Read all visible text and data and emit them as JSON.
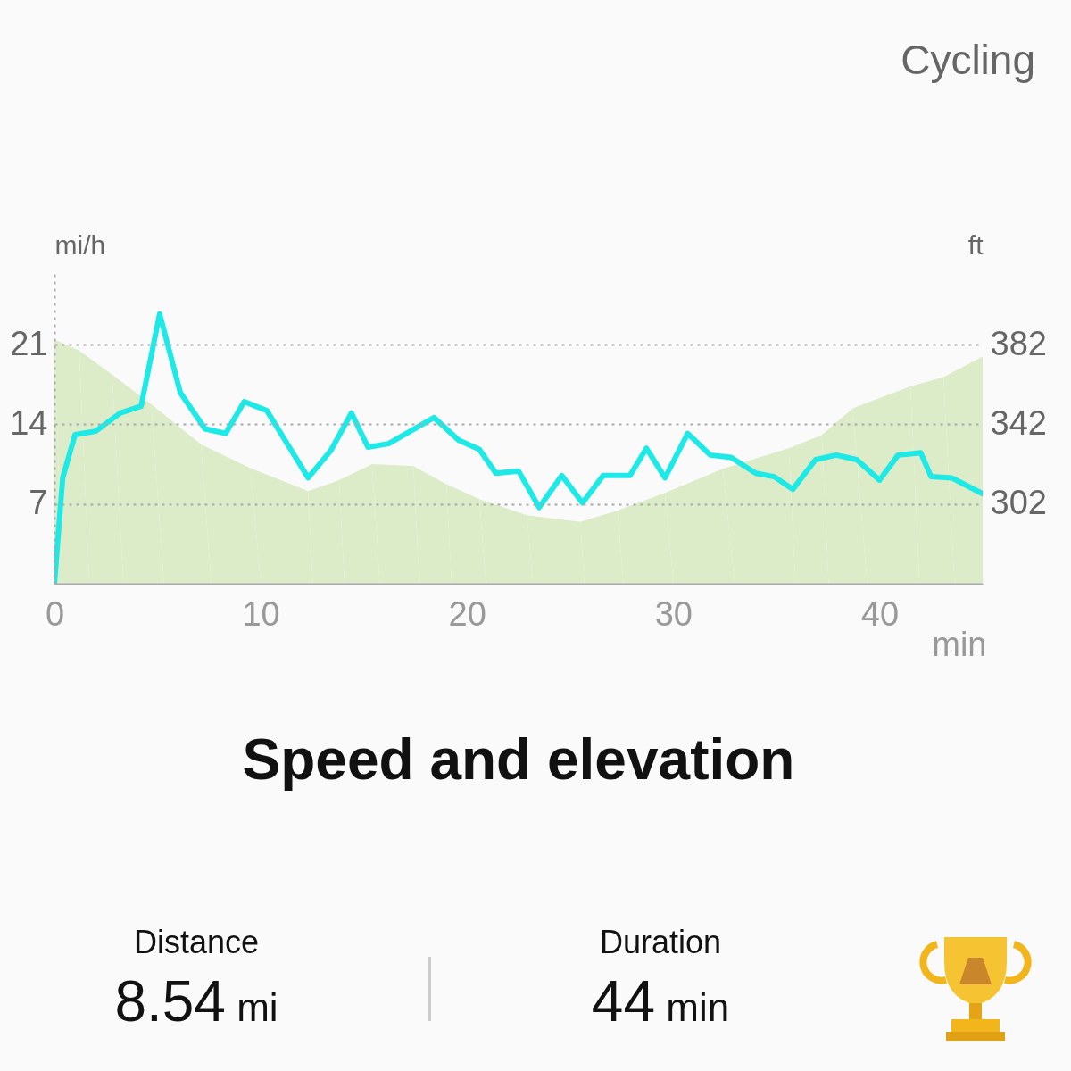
{
  "chart_data": {
    "type": "line",
    "title": "Speed and elevation",
    "xlabel": "min",
    "ylabel": "mi/h",
    "y2label": "ft",
    "annotations": [
      "Cycling",
      "Distance",
      "8.54 mi",
      "Duration",
      "44 min"
    ],
    "xlim": [
      0,
      45
    ],
    "xticks": [
      0,
      10,
      20,
      30,
      40
    ],
    "ylim": [
      0,
      27.6
    ],
    "yticks": [
      7,
      14,
      21
    ],
    "y2lim": [
      262,
      419.7
    ],
    "y2ticks": [
      302,
      342,
      382
    ],
    "grid": "y",
    "marker": "none",
    "line_style": "solid",
    "series": [
      {
        "type": "area",
        "axis": "y2",
        "color": "#dcebc8",
        "x": [
          0,
          1.2,
          2.8,
          4.7,
          7.1,
          9.5,
          12.3,
          13.8,
          15.4,
          17.4,
          19,
          20.6,
          22.9,
          25.5,
          27.3,
          29.6,
          32.4,
          35.6,
          37.2,
          38.7,
          41.5,
          43.1,
          45
        ],
        "values": [
          384.5,
          379,
          367,
          352,
          332,
          320,
          308.5,
          314,
          322,
          321,
          312,
          304.5,
          296.4,
          293,
          298.7,
          307.6,
          319.7,
          330,
          336.6,
          350,
          361,
          365.7,
          376
        ]
      },
      {
        "type": "line",
        "color": "#1de9e6",
        "x": [
          0,
          0.4,
          1,
          2,
          3.2,
          4.2,
          5.1,
          6.1,
          7.3,
          8.3,
          9.2,
          10.3,
          12.3,
          13.4,
          14.4,
          15.2,
          16.2,
          18.4,
          19.6,
          20.6,
          21.4,
          22.5,
          23.5,
          24.6,
          25.6,
          26.6,
          27.9,
          28.7,
          29.6,
          30.7,
          31.8,
          32.8,
          34,
          34.9,
          35.8,
          36.9,
          37.9,
          38.9,
          40,
          40.9,
          42,
          42.5,
          43.5,
          45
        ],
        "values": [
          0,
          9.3,
          13.1,
          13.4,
          15,
          15.6,
          23.7,
          16.8,
          13.6,
          13.2,
          16,
          15.2,
          9.3,
          11.7,
          15,
          12,
          12.3,
          14.6,
          12.6,
          11.8,
          9.7,
          9.9,
          6.7,
          9.5,
          7.1,
          9.5,
          9.5,
          11.9,
          9.3,
          13.2,
          11.3,
          11.1,
          9.7,
          9.4,
          8.3,
          10.9,
          11.3,
          10.9,
          9.1,
          11.3,
          11.5,
          9.4,
          9.3,
          7.9
        ]
      }
    ]
  }
}
